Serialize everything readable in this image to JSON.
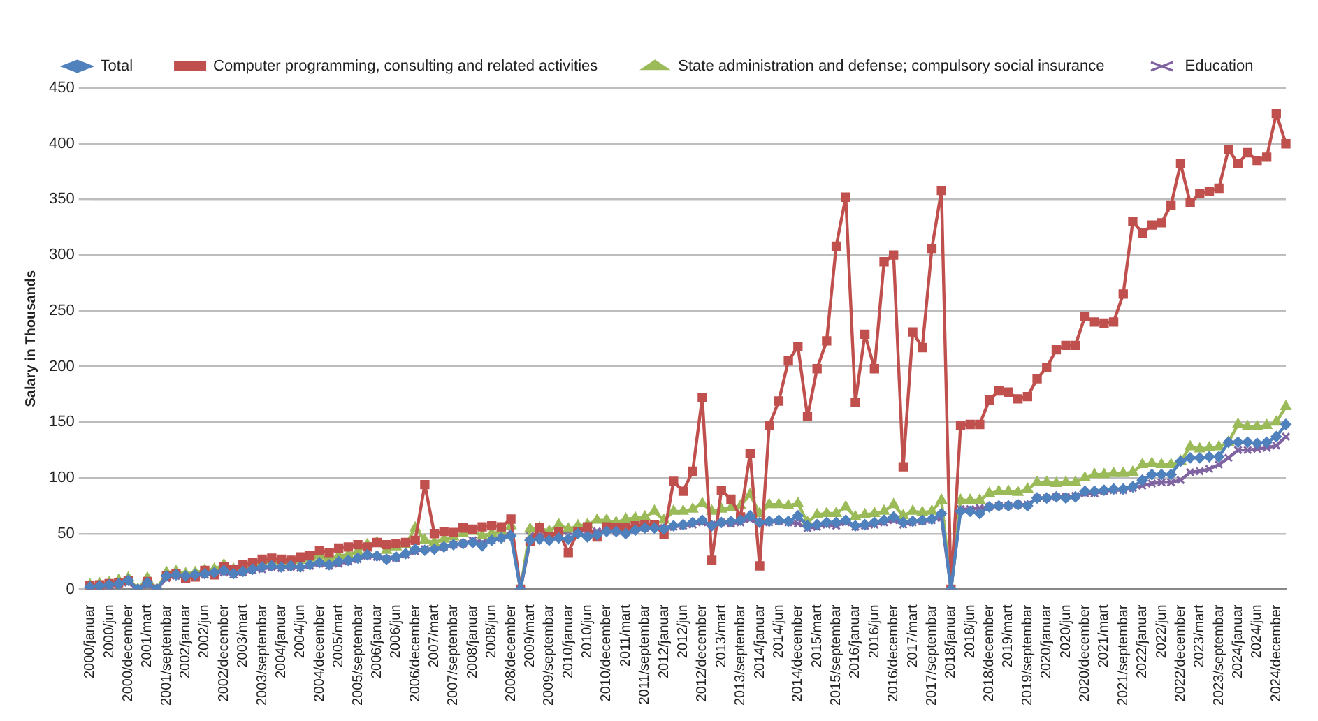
{
  "chart_data": {
    "type": "line",
    "ylabel": "Salary in Thousands",
    "categories": [
      "2000/januar",
      null,
      "2000/jun",
      null,
      "2000/december",
      null,
      "2001/mart",
      null,
      "2001/septembar",
      null,
      "2002/januar",
      null,
      "2002/jun",
      null,
      "2002/december",
      null,
      "2003/mart",
      null,
      "2003/septembar",
      null,
      "2004/januar",
      null,
      "2004/jun",
      null,
      "2004/december",
      null,
      "2005/mart",
      null,
      "2005/septembar",
      null,
      "2006/januar",
      null,
      "2006/jun",
      null,
      "2006/december",
      null,
      "2007/mart",
      null,
      "2007/septembar",
      null,
      "2008/januar",
      null,
      "2008/jun",
      null,
      "2008/december",
      null,
      "2009/mart",
      null,
      "2009/septembar",
      null,
      "2010/januar",
      null,
      "2010/jun",
      null,
      "2010/december",
      null,
      "2011/mart",
      null,
      "2011/septembar",
      null,
      "2012/januar",
      null,
      "2012/jun",
      null,
      "2012/december",
      null,
      "2013/mart",
      null,
      "2013/septembar",
      null,
      "2014/januar",
      null,
      "2014/jun",
      null,
      "2014/december",
      null,
      "2015/mart",
      null,
      "2015/septembar",
      null,
      "2016/januar",
      null,
      "2016/jun",
      null,
      "2016/december",
      null,
      "2017/mart",
      null,
      "2017/septembar",
      null,
      "2018/januar",
      null,
      "2018/jun",
      null,
      "2018/december",
      null,
      "2019/mart",
      null,
      "2019/septembar",
      null,
      "2020/januar",
      null,
      "2020/jun",
      null,
      "2020/december",
      null,
      "2021/mart",
      null,
      "2021/septembar",
      null,
      "2022/januar",
      null,
      "2022/jun",
      null,
      "2022/december",
      null,
      "2023/mart",
      null,
      "2023/septembar",
      null,
      "2024/januar",
      null,
      "2024/jun",
      null,
      "2024/december",
      null
    ],
    "series": [
      {
        "name": "Total",
        "color": "#4f81bd",
        "marker": "diamond",
        "values": [
          2,
          3,
          4,
          5,
          8,
          0,
          6,
          0,
          12,
          13,
          12,
          13,
          14,
          15,
          17,
          14,
          16,
          18,
          20,
          21,
          20,
          21,
          20,
          22,
          24,
          22,
          25,
          26,
          28,
          31,
          30,
          27,
          29,
          32,
          36,
          35,
          36,
          38,
          40,
          41,
          42,
          39,
          44,
          46,
          48,
          0,
          44,
          45,
          44,
          46,
          45,
          50,
          47,
          49,
          52,
          52,
          50,
          53,
          55,
          55,
          54,
          57,
          58,
          60,
          62,
          57,
          60,
          61,
          62,
          66,
          60,
          61,
          62,
          61,
          66,
          57,
          58,
          60,
          60,
          62,
          57,
          58,
          60,
          62,
          65,
          60,
          61,
          62,
          63,
          68,
          0,
          70,
          70,
          68,
          74,
          75,
          75,
          76,
          75,
          82,
          82,
          83,
          82,
          83,
          88,
          88,
          89,
          90,
          90,
          92,
          98,
          103,
          103,
          103,
          115,
          118,
          118,
          119,
          119,
          132,
          132,
          132,
          131,
          132,
          137,
          148
        ]
      },
      {
        "name": "Computer programming, consulting and related activities",
        "color": "#c0504d",
        "marker": "square",
        "values": [
          3,
          4,
          5,
          6,
          8,
          0,
          7,
          0,
          12,
          14,
          10,
          11,
          17,
          13,
          20,
          18,
          22,
          24,
          27,
          28,
          27,
          26,
          29,
          30,
          35,
          33,
          37,
          38,
          40,
          38,
          42,
          40,
          41,
          42,
          44,
          94,
          50,
          52,
          51,
          55,
          54,
          56,
          57,
          56,
          63,
          0,
          43,
          55,
          47,
          52,
          33,
          52,
          56,
          47,
          56,
          55,
          55,
          57,
          58,
          58,
          49,
          97,
          88,
          106,
          172,
          26,
          89,
          81,
          65,
          122,
          21,
          147,
          169,
          205,
          218,
          155,
          198,
          223,
          308,
          352,
          168,
          229,
          198,
          294,
          300,
          110,
          231,
          217,
          306,
          358,
          0,
          147,
          148,
          148,
          170,
          178,
          177,
          171,
          173,
          189,
          199,
          215,
          219,
          219,
          245,
          240,
          239,
          240,
          265,
          330,
          320,
          327,
          329,
          345,
          382,
          347,
          355,
          357,
          360,
          395,
          382,
          392,
          385,
          388,
          427,
          400
        ]
      },
      {
        "name": "State administration and defense; compulsory social insurance",
        "color": "#9bbb59",
        "marker": "triangle",
        "values": [
          4,
          5,
          6,
          8,
          10,
          0,
          10,
          0,
          15,
          16,
          14,
          15,
          17,
          18,
          22,
          18,
          20,
          22,
          24,
          26,
          24,
          25,
          26,
          28,
          30,
          27,
          30,
          31,
          34,
          40,
          42,
          35,
          38,
          40,
          55,
          44,
          42,
          45,
          47,
          50,
          52,
          48,
          50,
          52,
          57,
          0,
          54,
          55,
          52,
          58,
          54,
          57,
          58,
          62,
          62,
          60,
          63,
          64,
          65,
          70,
          62,
          70,
          70,
          72,
          77,
          70,
          72,
          73,
          75,
          85,
          68,
          76,
          76,
          75,
          77,
          60,
          67,
          68,
          68,
          74,
          65,
          67,
          68,
          70,
          76,
          66,
          70,
          69,
          70,
          80,
          0,
          80,
          80,
          80,
          86,
          88,
          88,
          87,
          90,
          96,
          96,
          95,
          96,
          96,
          100,
          103,
          103,
          104,
          104,
          105,
          112,
          113,
          112,
          112,
          115,
          128,
          126,
          127,
          128,
          132,
          148,
          146,
          146,
          147,
          150,
          164
        ]
      },
      {
        "name": "Education",
        "color": "#8064a2",
        "marker": "cross",
        "values": [
          2,
          3,
          3,
          4,
          6,
          0,
          4,
          0,
          10,
          12,
          11,
          12,
          13,
          14,
          15,
          13,
          15,
          17,
          18,
          20,
          19,
          20,
          19,
          21,
          23,
          21,
          23,
          25,
          27,
          30,
          29,
          27,
          28,
          31,
          34,
          36,
          37,
          38,
          40,
          41,
          44,
          42,
          44,
          46,
          52,
          0,
          48,
          49,
          48,
          50,
          52,
          53,
          52,
          52,
          53,
          52,
          54,
          56,
          55,
          57,
          55,
          56,
          57,
          58,
          60,
          58,
          60,
          59,
          60,
          63,
          58,
          60,
          61,
          60,
          59,
          55,
          56,
          58,
          57,
          60,
          56,
          57,
          58,
          60,
          62,
          58,
          60,
          61,
          62,
          64,
          0,
          72,
          72,
          73,
          74,
          75,
          75,
          76,
          76,
          82,
          82,
          83,
          83,
          84,
          86,
          86,
          88,
          89,
          89,
          91,
          93,
          95,
          96,
          96,
          98,
          105,
          106,
          108,
          112,
          118,
          125,
          125,
          126,
          127,
          129,
          137
        ]
      }
    ],
    "ylim": [
      0,
      450
    ],
    "yticks": [
      0,
      50,
      100,
      150,
      200,
      250,
      300,
      350,
      400,
      450
    ],
    "grid": "y",
    "legend": "top"
  }
}
